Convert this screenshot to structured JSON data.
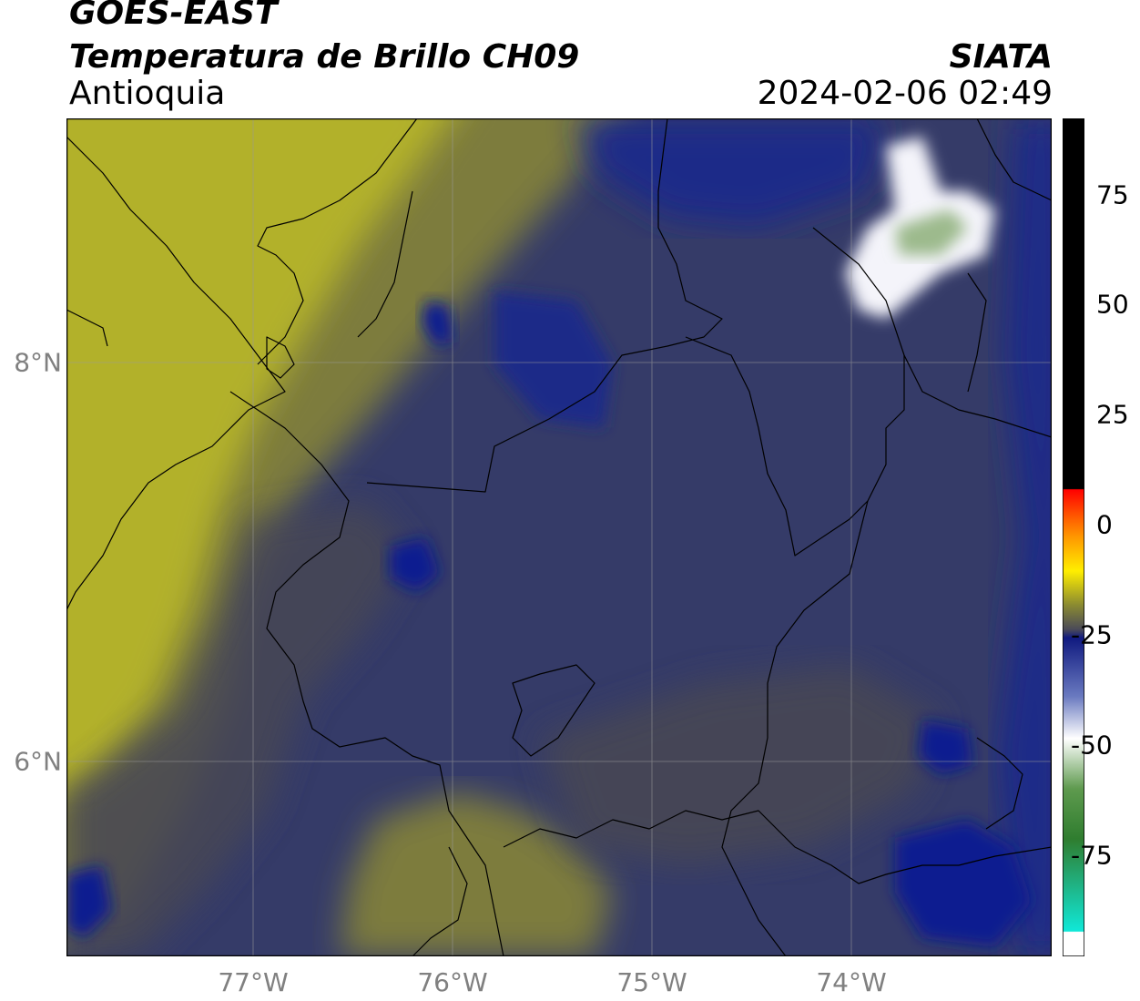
{
  "header": {
    "satellite": "GOES-EAST",
    "product": "Temperatura de Brillo CH09",
    "organization": "SIATA",
    "region": "Antioquia",
    "timestamp": "2024-02-06 02:49"
  },
  "axes": {
    "lat_labels": [
      "8°N",
      "6°N"
    ],
    "lon_labels": [
      "77°W",
      "76°W",
      "75°W",
      "74°W"
    ]
  },
  "colorbar": {
    "tick_labels": [
      "75",
      "50",
      "25",
      "0",
      "-25",
      "-50",
      "-75"
    ],
    "colors": {
      "black": "#000000",
      "red": "#ff0000",
      "orange": "#ff9900",
      "yellow": "#ffee00",
      "olive": "#8c8c30",
      "gray": "#4a4a58",
      "navy": "#101a80",
      "white": "#ffffff",
      "green": "#2f7d2f",
      "cyan": "#10e8d8"
    }
  },
  "map_colors": {
    "yellow": "#b2b12a",
    "olive": "#7d7b3d",
    "gray": "#474755",
    "slate": "#353b68",
    "navy": "#1c2b88",
    "deep": "#0d1a90",
    "white": "#f4f4fa",
    "green": "#9cba8c"
  }
}
